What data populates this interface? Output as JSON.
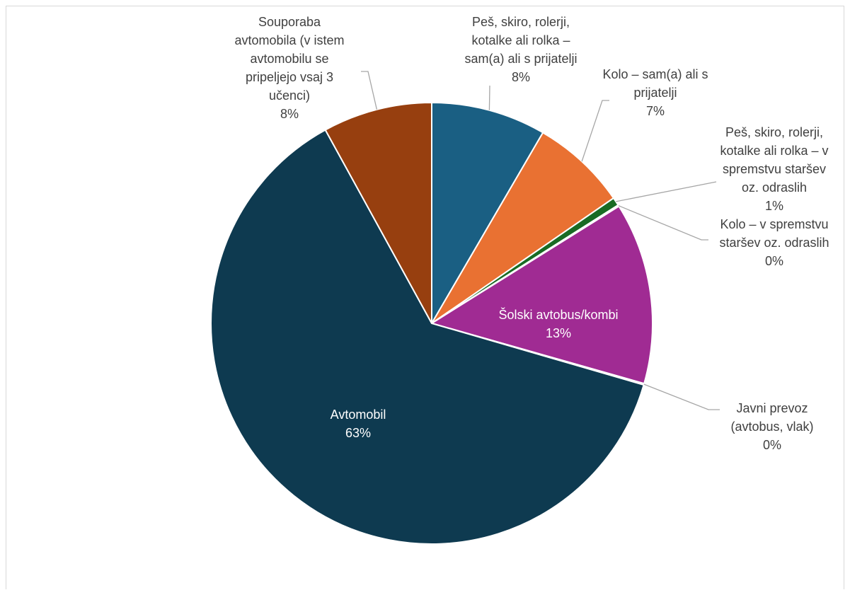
{
  "chart_data": {
    "type": "pie",
    "title": "",
    "legend": "none",
    "series": [
      {
        "slices": [
          {
            "label": "Peš, skiro, rolerji, kotalke ali rolka – sam(a) ali s prijatelji",
            "value_label": "8%",
            "value": 8.4,
            "color": "#1a5f83"
          },
          {
            "label": "Kolo – sam(a) ali s prijatelji",
            "value_label": "7%",
            "value": 7.0,
            "color": "#e97132"
          },
          {
            "label": "Peš, skiro, rolerji, kotalke ali rolka – v spremstvu staršev oz. odraslih",
            "value_label": "1%",
            "value": 0.6,
            "color": "#196b24"
          },
          {
            "label": "Kolo – v spremstvu staršev oz. odraslih",
            "value_label": "0%",
            "value": 0.1,
            "color": "#0f9ed5"
          },
          {
            "label": "Šolski avtobus/kombi",
            "value_label": "13%",
            "value": 13.3,
            "color": "#a02b93"
          },
          {
            "label": "Javni prevoz (avtobus, vlak)",
            "value_label": "0%",
            "value": 0.1,
            "color": "#4ea72e"
          },
          {
            "label": "Avtomobil",
            "value_label": "63%",
            "value": 62.5,
            "color": "#0e3a50"
          },
          {
            "label": "Souporaba avtomobila (v istem avtomobilu se pripeljejo vsaj 3 učenci)",
            "value_label": "8%",
            "value": 8.0,
            "color": "#973f0f"
          }
        ]
      }
    ]
  },
  "labels": [
    {
      "lines": [
        "Peš, skiro, rolerji,",
        "kotalke ali rolka –",
        "sam(a) ali s prijatelji"
      ],
      "pct": "8%"
    },
    {
      "lines": [
        "Kolo – sam(a) ali s",
        "prijatelji"
      ],
      "pct": "7%"
    },
    {
      "lines": [
        "Peš, skiro, rolerji,",
        "kotalke ali rolka – v",
        "spremstvu staršev",
        "oz. odraslih"
      ],
      "pct": "1%"
    },
    {
      "lines": [
        "Kolo – v spremstvu",
        "staršev oz. odraslih"
      ],
      "pct": "0%"
    },
    {
      "lines": [
        "Šolski avtobus/kombi"
      ],
      "pct": "13%"
    },
    {
      "lines": [
        "Javni prevoz",
        "(avtobus, vlak)"
      ],
      "pct": "0%"
    },
    {
      "lines": [
        "Avtomobil"
      ],
      "pct": "63%"
    },
    {
      "lines": [
        "Souporaba",
        "avtomobila (v istem",
        "avtomobilu se",
        "pripeljejo vsaj 3",
        "učenci)"
      ],
      "pct": "8%"
    }
  ]
}
